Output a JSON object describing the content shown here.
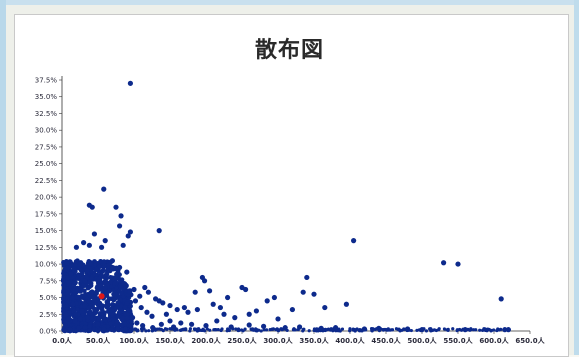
{
  "chart_data": {
    "type": "scatter",
    "title": "散布図",
    "xlabel": "",
    "ylabel": "",
    "xlim": [
      0,
      650
    ],
    "ylim": [
      0,
      37.5
    ],
    "x_ticks": [
      "0.0人",
      "50.0人",
      "100.0人",
      "150.0人",
      "200.0人",
      "250.0人",
      "300.0人",
      "350.0人",
      "400.0人",
      "450.0人",
      "500.0人",
      "550.0人",
      "600.0人",
      "650.0人"
    ],
    "y_ticks": [
      "0.0%",
      "2.5%",
      "5.0%",
      "7.5%",
      "10.0%",
      "12.5%",
      "15.0%",
      "17.5%",
      "20.0%",
      "22.5%",
      "25.0%",
      "27.5%",
      "30.0%",
      "32.5%",
      "35.0%",
      "37.5%"
    ],
    "grid": false,
    "series": [
      {
        "color": "#0d2a8c",
        "points": [
          [
            95,
            37
          ],
          [
            38,
            18.8
          ],
          [
            42,
            18.5
          ],
          [
            75,
            18.5
          ],
          [
            58,
            21.2
          ],
          [
            82,
            17.2
          ],
          [
            80,
            15.7
          ],
          [
            95,
            14.8
          ],
          [
            45,
            14.5
          ],
          [
            30,
            13.2
          ],
          [
            38,
            12.8
          ],
          [
            55,
            12.5
          ],
          [
            85,
            12.8
          ],
          [
            60,
            13.5
          ],
          [
            20,
            12.5
          ],
          [
            92,
            14.2
          ],
          [
            70,
            10.5
          ],
          [
            40,
            10.2
          ],
          [
            25,
            10.0
          ],
          [
            65,
            9.8
          ],
          [
            80,
            9.5
          ],
          [
            48,
            9.2
          ],
          [
            35,
            9.0
          ],
          [
            90,
            8.8
          ],
          [
            12,
            8.5
          ],
          [
            55,
            8.2
          ],
          [
            75,
            8.0
          ],
          [
            2,
            7.5
          ],
          [
            10,
            7.2
          ],
          [
            30,
            6.8
          ],
          [
            60,
            6.5
          ],
          [
            85,
            7.0
          ],
          [
            100,
            6.2
          ],
          [
            115,
            6.5
          ],
          [
            120,
            5.8
          ],
          [
            108,
            5.2
          ],
          [
            130,
            4.8
          ],
          [
            135,
            4.5
          ],
          [
            140,
            4.2
          ],
          [
            150,
            3.8
          ],
          [
            160,
            3.2
          ],
          [
            170,
            3.5
          ],
          [
            175,
            2.8
          ],
          [
            185,
            5.8
          ],
          [
            188,
            3.2
          ],
          [
            195,
            8.0
          ],
          [
            198,
            7.5
          ],
          [
            205,
            6.0
          ],
          [
            210,
            4.0
          ],
          [
            220,
            3.5
          ],
          [
            225,
            2.5
          ],
          [
            230,
            5.0
          ],
          [
            240,
            2.0
          ],
          [
            250,
            6.5
          ],
          [
            255,
            6.2
          ],
          [
            260,
            2.5
          ],
          [
            270,
            3.0
          ],
          [
            285,
            4.5
          ],
          [
            295,
            5.0
          ],
          [
            300,
            1.8
          ],
          [
            320,
            3.2
          ],
          [
            335,
            5.8
          ],
          [
            340,
            8.0
          ],
          [
            350,
            5.5
          ],
          [
            365,
            3.5
          ],
          [
            395,
            4.0
          ],
          [
            405,
            13.5
          ],
          [
            135,
            15.0
          ],
          [
            530,
            10.2
          ],
          [
            550,
            10.0
          ],
          [
            610,
            4.8
          ],
          [
            615,
            0.2
          ],
          [
            620,
            0.2
          ],
          [
            480,
            0.3
          ],
          [
            500,
            0.2
          ],
          [
            560,
            0.2
          ],
          [
            440,
            0.4
          ],
          [
            420,
            0.3
          ],
          [
            150,
            1.5
          ],
          [
            165,
            1.2
          ],
          [
            180,
            1.0
          ],
          [
            200,
            0.8
          ],
          [
            215,
            1.5
          ],
          [
            235,
            0.6
          ],
          [
            260,
            0.9
          ],
          [
            280,
            0.7
          ],
          [
            310,
            0.5
          ],
          [
            330,
            0.6
          ],
          [
            360,
            0.4
          ],
          [
            380,
            0.5
          ],
          [
            125,
            2.2
          ],
          [
            145,
            2.5
          ],
          [
            110,
            3.5
          ],
          [
            118,
            2.8
          ],
          [
            102,
            4.5
          ],
          [
            5,
            2.5
          ],
          [
            8,
            5.5
          ],
          [
            15,
            4.0
          ],
          [
            18,
            1.5
          ],
          [
            22,
            6.0
          ],
          [
            28,
            3.0
          ],
          [
            32,
            7.5
          ],
          [
            36,
            2.0
          ],
          [
            44,
            5.0
          ],
          [
            50,
            1.0
          ],
          [
            52,
            7.8
          ],
          [
            62,
            3.8
          ],
          [
            66,
            6.0
          ],
          [
            70,
            2.5
          ],
          [
            72,
            5.5
          ],
          [
            78,
            4.2
          ],
          [
            84,
            1.8
          ],
          [
            88,
            3.5
          ],
          [
            94,
            5.8
          ],
          [
            98,
            2.0
          ],
          [
            104,
            1.2
          ],
          [
            112,
            0.8
          ],
          [
            126,
            0.5
          ],
          [
            138,
            1.0
          ],
          [
            155,
            0.6
          ]
        ]
      },
      {
        "color": "#e01818",
        "points": [
          [
            55,
            5.2
          ]
        ]
      }
    ]
  }
}
